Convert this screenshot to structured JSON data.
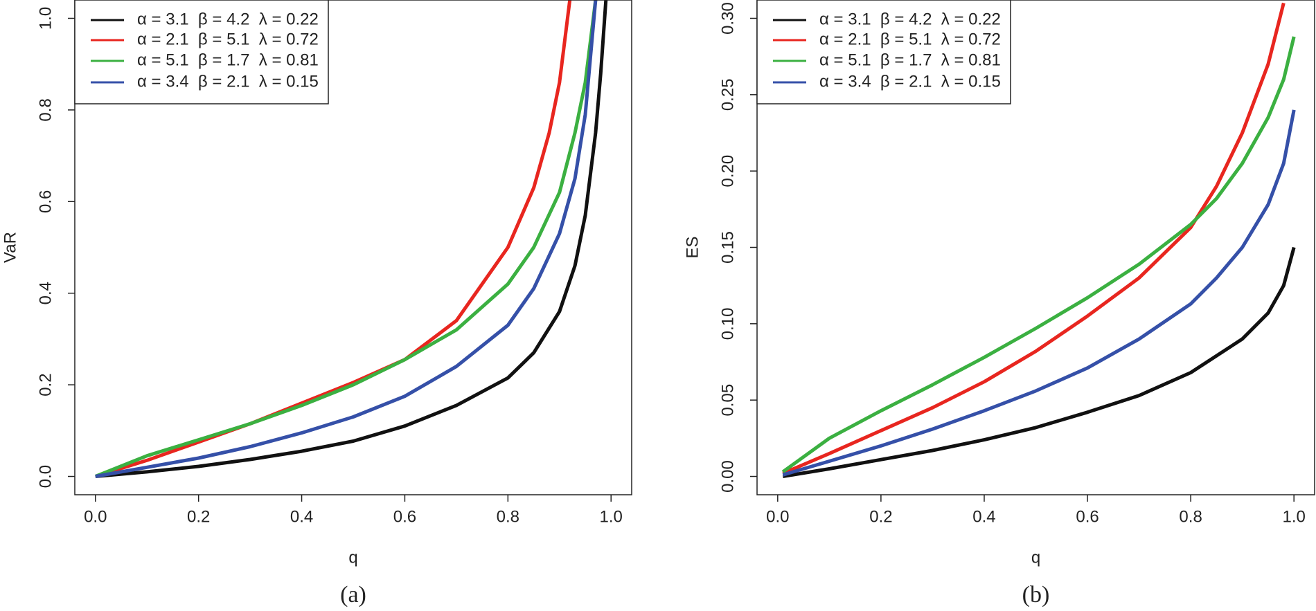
{
  "chart_data": [
    {
      "type": "line",
      "caption": "(a)",
      "x_label": "q",
      "y_label": "VaR",
      "xlim": [
        -0.04,
        1.04
      ],
      "ylim": [
        -0.04,
        1.04
      ],
      "xticks": [
        {
          "value": 0,
          "label": "0.0"
        },
        0.2,
        0.4,
        0.6,
        0.8,
        {
          "value": 1,
          "label": "1.0"
        }
      ],
      "yticks": [
        {
          "value": 0,
          "label": "0.0"
        },
        0.2,
        0.4,
        0.6,
        0.8,
        {
          "value": 1,
          "label": "1.0"
        }
      ],
      "legend": "top-left",
      "series": [
        {
          "name": "α = 3.1  β = 4.2  λ = 0.22",
          "color": "#111111",
          "x": [
            0,
            0.1,
            0.2,
            0.3,
            0.4,
            0.5,
            0.6,
            0.7,
            0.8,
            0.85,
            0.9,
            0.93,
            0.95,
            0.97,
            0.98,
            0.99
          ],
          "values": [
            0,
            0.01,
            0.022,
            0.037,
            0.055,
            0.077,
            0.11,
            0.155,
            0.215,
            0.27,
            0.36,
            0.46,
            0.57,
            0.75,
            0.88,
            1.04
          ]
        },
        {
          "name": "α = 2.1  β = 5.1  λ = 0.72",
          "color": "#e8261f",
          "x": [
            0,
            0.1,
            0.2,
            0.3,
            0.4,
            0.5,
            0.6,
            0.7,
            0.8,
            0.85,
            0.88,
            0.9,
            0.92
          ],
          "values": [
            0,
            0.035,
            0.075,
            0.115,
            0.16,
            0.205,
            0.255,
            0.34,
            0.5,
            0.63,
            0.75,
            0.86,
            1.04
          ]
        },
        {
          "name": "α = 5.1  β = 1.7  λ = 0.81",
          "color": "#3bb041",
          "x": [
            0,
            0.1,
            0.2,
            0.3,
            0.4,
            0.5,
            0.6,
            0.7,
            0.8,
            0.85,
            0.9,
            0.93,
            0.95,
            0.97
          ],
          "values": [
            0,
            0.045,
            0.08,
            0.115,
            0.155,
            0.2,
            0.255,
            0.32,
            0.42,
            0.5,
            0.62,
            0.75,
            0.86,
            1.04
          ]
        },
        {
          "name": "α = 3.4  β = 2.1  λ = 0.15",
          "color": "#3550a8",
          "x": [
            0,
            0.1,
            0.2,
            0.3,
            0.4,
            0.5,
            0.6,
            0.7,
            0.8,
            0.85,
            0.9,
            0.93,
            0.95,
            0.97
          ],
          "values": [
            0,
            0.02,
            0.04,
            0.065,
            0.095,
            0.13,
            0.175,
            0.24,
            0.33,
            0.41,
            0.53,
            0.65,
            0.79,
            1.04
          ]
        }
      ]
    },
    {
      "type": "line",
      "caption": "(b)",
      "x_label": "q",
      "y_label": "ES",
      "xlim": [
        -0.04,
        1.04
      ],
      "ylim": [
        -0.012,
        0.312
      ],
      "xticks": [
        {
          "value": 0,
          "label": "0.0"
        },
        0.2,
        0.4,
        0.6,
        0.8,
        {
          "value": 1,
          "label": "1.0"
        }
      ],
      "yticks": [
        {
          "value": 0,
          "label": "0.00"
        },
        {
          "value": 0.05,
          "label": "0.05"
        },
        {
          "value": 0.1,
          "label": "0.10"
        },
        {
          "value": 0.15,
          "label": "0.15"
        },
        {
          "value": 0.2,
          "label": "0.20"
        },
        {
          "value": 0.25,
          "label": "0.25"
        },
        {
          "value": 0.3,
          "label": "0.30"
        }
      ],
      "legend": "top-left",
      "series": [
        {
          "name": "α = 3.1  β = 4.2  λ = 0.22",
          "color": "#111111",
          "x": [
            0.01,
            0.1,
            0.2,
            0.3,
            0.4,
            0.5,
            0.6,
            0.7,
            0.8,
            0.9,
            0.95,
            0.98,
            1
          ],
          "values": [
            0,
            0.005,
            0.011,
            0.017,
            0.024,
            0.032,
            0.042,
            0.053,
            0.068,
            0.09,
            0.107,
            0.125,
            0.15
          ]
        },
        {
          "name": "α = 2.1  β = 5.1  λ = 0.72",
          "color": "#e8261f",
          "x": [
            0.01,
            0.1,
            0.2,
            0.3,
            0.4,
            0.5,
            0.6,
            0.7,
            0.8,
            0.85,
            0.9,
            0.95,
            0.98
          ],
          "values": [
            0.002,
            0.015,
            0.03,
            0.045,
            0.062,
            0.082,
            0.105,
            0.13,
            0.163,
            0.19,
            0.225,
            0.27,
            0.31
          ]
        },
        {
          "name": "α = 5.1  β = 1.7  λ = 0.81",
          "color": "#3bb041",
          "x": [
            0.01,
            0.1,
            0.2,
            0.3,
            0.4,
            0.5,
            0.6,
            0.7,
            0.8,
            0.85,
            0.9,
            0.95,
            0.98,
            1
          ],
          "values": [
            0.003,
            0.025,
            0.043,
            0.06,
            0.078,
            0.097,
            0.117,
            0.139,
            0.165,
            0.182,
            0.205,
            0.235,
            0.26,
            0.288
          ]
        },
        {
          "name": "α = 3.4  β = 2.1  λ = 0.15",
          "color": "#3550a8",
          "x": [
            0.01,
            0.1,
            0.2,
            0.3,
            0.4,
            0.5,
            0.6,
            0.7,
            0.8,
            0.85,
            0.9,
            0.95,
            0.98,
            1
          ],
          "values": [
            0.001,
            0.01,
            0.02,
            0.031,
            0.043,
            0.056,
            0.071,
            0.09,
            0.113,
            0.13,
            0.15,
            0.178,
            0.205,
            0.24
          ]
        }
      ]
    }
  ]
}
